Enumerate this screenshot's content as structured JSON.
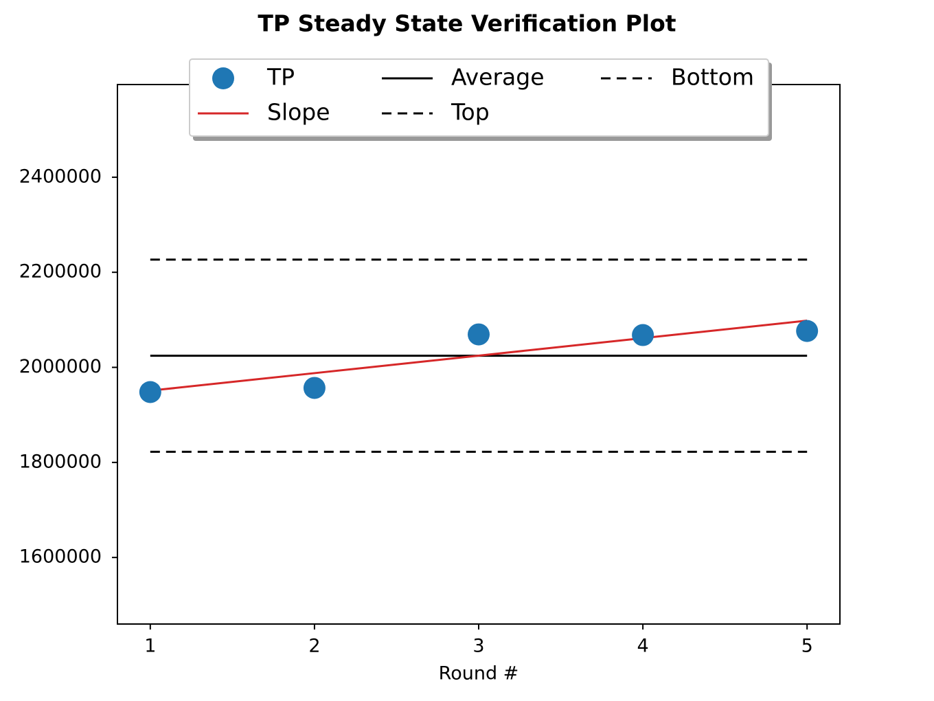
{
  "chart_data": {
    "type": "line",
    "title": "TP Steady State Verification Plot",
    "x_label": "Round #",
    "x": [
      1,
      2,
      3,
      4,
      5
    ],
    "series": [
      {
        "name": "TP",
        "color": "#1f77b4",
        "style": "marker",
        "values": [
          1948000,
          1956700,
          2069300,
          2067900,
          2076500
        ]
      },
      {
        "name": "Slope",
        "color": "#d62728",
        "style": "solid",
        "values": [
          1951000,
          1987825,
          2024650,
          2061475,
          2098300
        ]
      },
      {
        "name": "Average",
        "color": "#000000",
        "style": "solid",
        "values": [
          2024500,
          2024500,
          2024500,
          2024500,
          2024500
        ]
      },
      {
        "name": "Top",
        "color": "#000000",
        "style": "dashed",
        "values": [
          2226700,
          2226700,
          2226700,
          2226700,
          2226700
        ]
      },
      {
        "name": "Bottom",
        "color": "#000000",
        "style": "dashed",
        "values": [
          1822400,
          1822400,
          1822400,
          1822400,
          1822400
        ]
      }
    ],
    "xlim": [
      0.8,
      5.2
    ],
    "xticks": [
      1,
      2,
      3,
      4,
      5
    ],
    "ylim": [
      1460000,
      2595000
    ],
    "yticks": [
      1600000,
      1800000,
      2000000,
      2200000,
      2400000
    ],
    "legend": "top-center"
  }
}
